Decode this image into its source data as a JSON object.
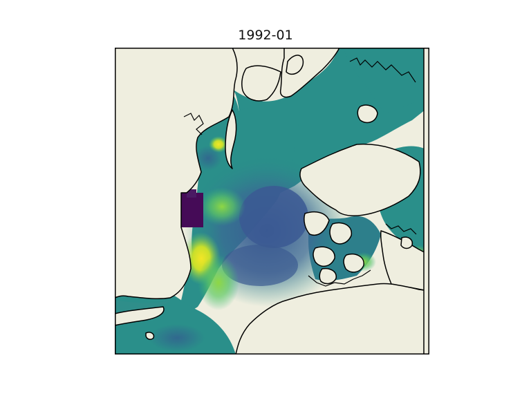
{
  "map": {
    "title": "1992-01",
    "projection": "north-polar-stereographic",
    "colormap": "viridis",
    "land_color": "#efeedf",
    "coastline_color": "#000000",
    "frame_color": "#000000",
    "ocean_base_color": "#2a8f8a",
    "central_low_color": "#3a5a93",
    "high_color": "#e9e326",
    "min_color": "#450b57"
  }
}
